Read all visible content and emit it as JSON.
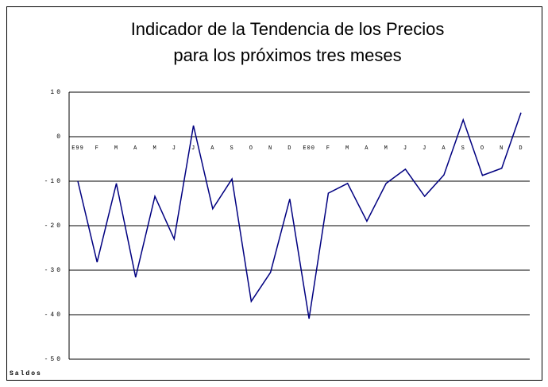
{
  "chart_data": {
    "type": "line",
    "title": [
      "Indicador de la Tendencia de los Precios",
      "para los próximos tres meses"
    ],
    "y_label": "Saldos",
    "categories": [
      "E99",
      "F",
      "M",
      "A",
      "M",
      "J",
      "J",
      "A",
      "S",
      "O",
      "N",
      "D",
      "E00",
      "F",
      "M",
      "A",
      "M",
      "J",
      "J",
      "A",
      "S",
      "O",
      "N",
      "D"
    ],
    "series": [
      {
        "name": "Saldos",
        "color": "#000080",
        "values": [
          -10,
          -28.2,
          -10.5,
          -31.6,
          -13.4,
          -23,
          2.5,
          -16.2,
          -9.5,
          -37,
          -30.5,
          -14,
          -40.9,
          -12.7,
          -10.5,
          -19,
          -10.5,
          -7.3,
          -13.4,
          -8.6,
          3.8,
          -8.7,
          -7.1,
          5.4
        ]
      }
    ],
    "ylim": [
      -50,
      10
    ],
    "yticks": [
      -50,
      -40,
      -30,
      -20,
      -10,
      0,
      10
    ],
    "grid": true
  }
}
